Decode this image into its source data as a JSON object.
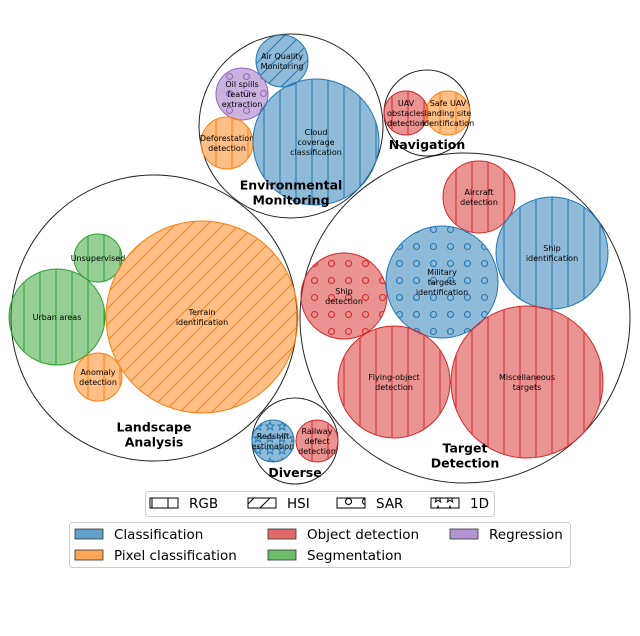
{
  "colors": {
    "Classification": "#1f77b4",
    "Pixel classification": "#ff7f0e",
    "Object detection": "#d62728",
    "Segmentation": "#2ca02c",
    "Regression": "#9467bd"
  },
  "groups": [
    {
      "id": "environmental-monitoring",
      "label": [
        "Environmental",
        "Monitoring"
      ],
      "bubbles": [
        {
          "label": [
            "Air Quality",
            "Monitoring"
          ],
          "category": "Classification",
          "modality": "HSI"
        },
        {
          "label": [
            "Oil spills",
            "feature",
            "extraction"
          ],
          "category": "Regression",
          "modality": "SAR"
        },
        {
          "label": [
            "Deforestation",
            "detection"
          ],
          "category": "Pixel classification",
          "modality": "RGB"
        },
        {
          "label": [
            "Cloud",
            "coverage",
            "classification"
          ],
          "category": "Classification",
          "modality": "RGB"
        }
      ]
    },
    {
      "id": "navigation",
      "label": [
        "Navigation"
      ],
      "bubbles": [
        {
          "label": [
            "UAV",
            "obstacles",
            "detection"
          ],
          "category": "Object detection",
          "modality": "RGB"
        },
        {
          "label": [
            "Safe UAV",
            "landing site",
            "identification"
          ],
          "category": "Pixel classification",
          "modality": "RGB"
        }
      ]
    },
    {
      "id": "landscape-analysis",
      "label": [
        "Landscape",
        "Analysis"
      ],
      "bubbles": [
        {
          "label": [
            "Unsupervised"
          ],
          "category": "Segmentation",
          "modality": "RGB"
        },
        {
          "label": [
            "Urban areas"
          ],
          "category": "Segmentation",
          "modality": "RGB"
        },
        {
          "label": [
            "Anomaly",
            "detection"
          ],
          "category": "Pixel classification",
          "modality": "RGB"
        },
        {
          "label": [
            "Terrain",
            "identification"
          ],
          "category": "Pixel classification",
          "modality": "HSI"
        }
      ]
    },
    {
      "id": "target-detection",
      "label": [
        "Target",
        "Detection"
      ],
      "bubbles": [
        {
          "label": [
            "Aircraft",
            "detection"
          ],
          "category": "Object detection",
          "modality": "RGB"
        },
        {
          "label": [
            "Ship",
            "identification"
          ],
          "category": "Classification",
          "modality": "RGB"
        },
        {
          "label": [
            "Ship",
            "detection"
          ],
          "category": "Object detection",
          "modality": "SAR"
        },
        {
          "label": [
            "Military",
            "targets",
            "identification"
          ],
          "category": "Classification",
          "modality": "SAR"
        },
        {
          "label": [
            "Flying-object",
            "detection"
          ],
          "category": "Object detection",
          "modality": "RGB"
        },
        {
          "label": [
            "Miscellaneous",
            "targets"
          ],
          "category": "Object detection",
          "modality": "RGB"
        }
      ]
    },
    {
      "id": "diverse",
      "label": [
        "Diverse"
      ],
      "bubbles": [
        {
          "label": [
            "Redshift",
            "estimation"
          ],
          "category": "Classification",
          "modality": "1D"
        },
        {
          "label": [
            "Railway",
            "defect",
            "detection"
          ],
          "category": "Object detection",
          "modality": "RGB"
        }
      ]
    }
  ],
  "legend_modality": [
    {
      "label": "RGB",
      "pattern": "RGB"
    },
    {
      "label": "HSI",
      "pattern": "HSI"
    },
    {
      "label": "SAR",
      "pattern": "SAR"
    },
    {
      "label": "1D",
      "pattern": "1D"
    }
  ],
  "legend_category": [
    {
      "label": "Classification",
      "category": "Classification"
    },
    {
      "label": "Pixel classification",
      "category": "Pixel classification"
    },
    {
      "label": "Object detection",
      "category": "Object detection"
    },
    {
      "label": "Segmentation",
      "category": "Segmentation"
    },
    {
      "label": "Regression",
      "category": "Regression"
    }
  ]
}
